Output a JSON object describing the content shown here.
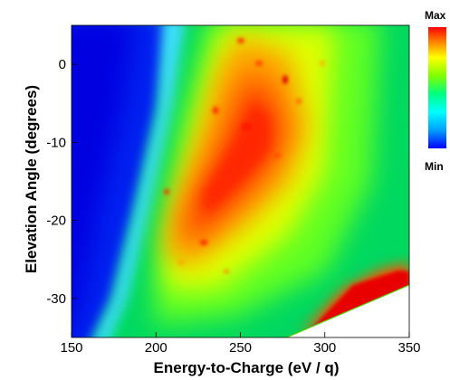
{
  "chart_data": {
    "type": "heatmap",
    "title": "",
    "xlabel": "Energy-to-Charge (eV / q)",
    "ylabel": "Elevation Angle (degrees)",
    "xlim": [
      150,
      350
    ],
    "ylim": [
      -35,
      5
    ],
    "x_ticks": [
      150,
      200,
      250,
      300,
      350
    ],
    "y_ticks": [
      0,
      -10,
      -20,
      -30
    ],
    "colorbar": {
      "max_label": "Max",
      "min_label": "Min",
      "colors": [
        "#0000ff",
        "#00a0ff",
        "#00ffff",
        "#00ff80",
        "#80ff00",
        "#ffff00",
        "#ff8000",
        "#ff0000"
      ]
    },
    "features": {
      "low_region_edge": [
        [
          150,
          -35
        ],
        [
          160,
          -30
        ],
        [
          172,
          -20
        ],
        [
          182,
          -10
        ],
        [
          190,
          0
        ],
        [
          195,
          5
        ]
      ],
      "peak_ridge": [
        [
          215,
          -28
        ],
        [
          235,
          -22
        ],
        [
          255,
          -15
        ],
        [
          272,
          -8
        ],
        [
          285,
          0
        ],
        [
          290,
          5
        ]
      ],
      "no_data_boundary": [
        [
          300,
          -38
        ],
        [
          350,
          -28
        ]
      ]
    }
  }
}
